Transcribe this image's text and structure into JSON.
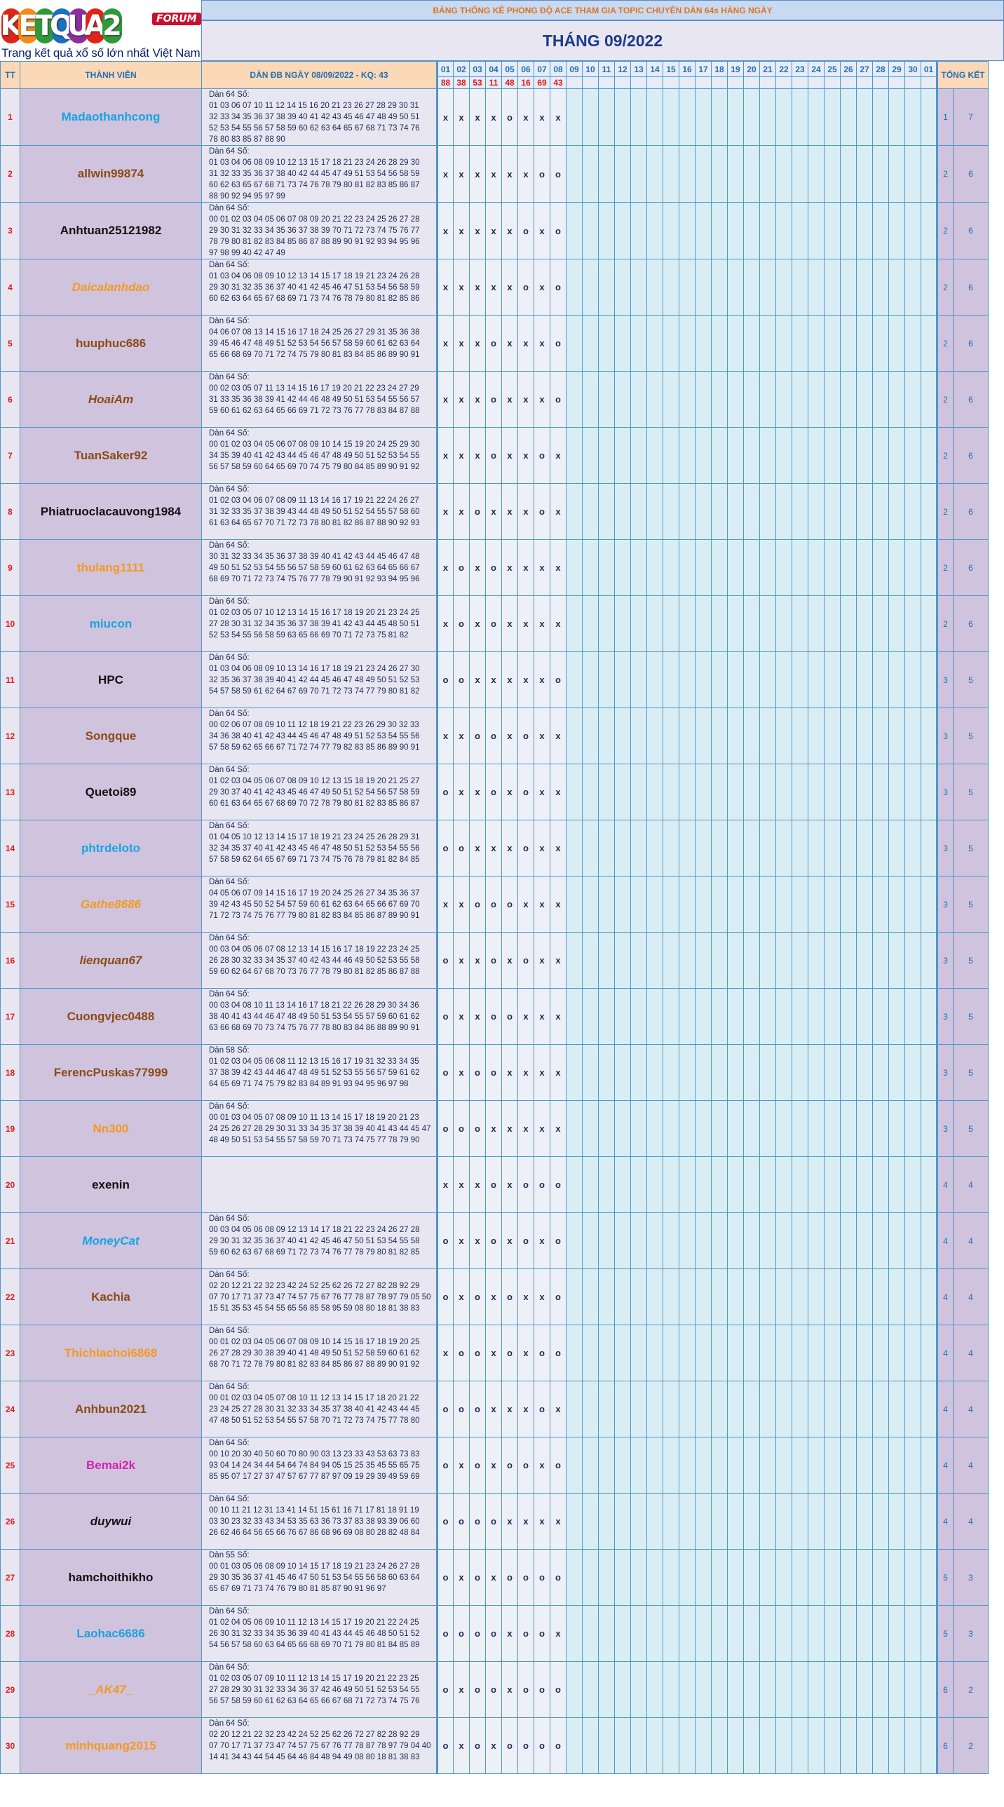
{
  "logo": {
    "letters": [
      "K",
      "E",
      "T",
      "Q",
      "U",
      "A",
      "2"
    ],
    "letter_colors": [
      "#e2231a",
      "#f28c1a",
      "#2e9a3a",
      "#1d6fc1",
      "#8a2ea0",
      "#e2231a",
      "#2e9a3a"
    ],
    "forum_label": "FORUM",
    "tagline": "Trang kết quả xổ số lớn nhất Việt Nam"
  },
  "header": {
    "banner": "BẢNG THỐNG KÊ PHONG ĐỘ ACE THAM GIA TOPIC CHUYÊN DÀN 64s HÀNG NGÀY",
    "month_title": "THÁNG 09/2022"
  },
  "columns": {
    "stt": "TT",
    "member": "THÀNH VIÊN",
    "dan": "DÀN ĐB NGÀY 08/09/2022 - KQ: 43",
    "total": "TỔNG KẾT"
  },
  "days": [
    "01",
    "02",
    "03",
    "04",
    "05",
    "06",
    "07",
    "08",
    "09",
    "10",
    "11",
    "12",
    "13",
    "14",
    "15",
    "16",
    "17",
    "18",
    "19",
    "20",
    "21",
    "22",
    "23",
    "24",
    "25",
    "26",
    "27",
    "28",
    "29",
    "30",
    "01"
  ],
  "results": [
    "88",
    "38",
    "53",
    "11",
    "48",
    "16",
    "69",
    "43"
  ],
  "rows": [
    {
      "stt": "1",
      "name": "Madaothanhcong",
      "color": "#1aa3e0",
      "italic": false,
      "lines": [
        "Dàn 64 Số:",
        "01 03 06 07 10 11 12 14 15 16 20 21 23 26 27 28 29 30 31",
        "32 33 34 35 36 37 38 39 40 41 42 43 45 46 47 48 49 50 51",
        "52 53 54 55 56 57 58 59 60 62 63 64 65 67 68 71 73 74 76",
        "78 80 83 85 87 88 90"
      ],
      "marks": [
        "x",
        "x",
        "x",
        "x",
        "o",
        "x",
        "x",
        "x"
      ],
      "count": "1",
      "total": "7"
    },
    {
      "stt": "2",
      "name": "allwin99874",
      "color": "#8b4a14",
      "italic": false,
      "lines": [
        "Dàn 64 Số:",
        "01 03 04 06 08 09 10 12 13 15 17 18 21 23 24 26 28 29 30",
        "31 32 33 35 36 37 38 40 42 44 45 47 49 51 53 54 56 58 59",
        "60 62 63 65 67 68 71 73 74 76 78 79 80 81 82 83 85 86 87",
        "88 90 92 94 95 97 99"
      ],
      "marks": [
        "x",
        "x",
        "x",
        "x",
        "x",
        "x",
        "o",
        "o"
      ],
      "count": "2",
      "total": "6"
    },
    {
      "stt": "3",
      "name": "Anhtuan25121982",
      "color": "#111111",
      "italic": false,
      "lines": [
        "Dàn 64 Số:",
        "00 01 02 03 04 05 06 07 08 09 20 21 22 23 24 25 26 27 28",
        "29 30 31 32 33 34 35 36 37 38 39 70 71 72 73 74 75 76 77",
        "78 79 80 81 82 83 84 85 86 87 88 89 90 91 92 93 94 95 96",
        "97 98 99 40 42 47 49"
      ],
      "marks": [
        "x",
        "x",
        "x",
        "x",
        "x",
        "o",
        "x",
        "o"
      ],
      "count": "2",
      "total": "6"
    },
    {
      "stt": "4",
      "name": "Daicalanhdao",
      "color": "#f29a1f",
      "italic": true,
      "lines": [
        "Dàn 64 Số:",
        "01 03 04 06 08 09 10 12 13 14 15 17 18 19 21 23 24 26 28",
        "29 30 31 32 35 36 37 40 41 42 45 46 47 51 53 54 56 58 59",
        "60 62 63 64 65 67 68 69 71 73 74 76 78 79 80 81 82 85 86"
      ],
      "marks": [
        "x",
        "x",
        "x",
        "x",
        "x",
        "o",
        "x",
        "o"
      ],
      "count": "2",
      "total": "6"
    },
    {
      "stt": "5",
      "name": "huuphuc686",
      "color": "#8b4a14",
      "italic": false,
      "lines": [
        "Dàn 64 Số:",
        "04 06 07 08 13 14 15 16 17 18 24 25 26 27 29 31 35 36 38",
        "39 45 46 47 48 49 51 52 53 54 56 57 58 59 60 61 62 63 64",
        "65 66 68 69 70 71 72 74 75 79 80 81 83 84 85 86 89 90 91"
      ],
      "marks": [
        "x",
        "x",
        "x",
        "o",
        "x",
        "x",
        "x",
        "o"
      ],
      "count": "2",
      "total": "6"
    },
    {
      "stt": "6",
      "name": "HoaiAm",
      "color": "#8b4a14",
      "italic": true,
      "lines": [
        "Dàn 64 Số:",
        "00 02 03 05 07 11 13 14 15 16 17 19 20 21 22 23 24 27 29",
        "31 33 35 36 38 39 41 42 44 46 48 49 50 51 53 54 55 56 57",
        "59 60 61 62 63 64 65 66 69 71 72 73 76 77 78 83 84 87 88"
      ],
      "marks": [
        "x",
        "x",
        "x",
        "o",
        "x",
        "x",
        "x",
        "o"
      ],
      "count": "2",
      "total": "6"
    },
    {
      "stt": "7",
      "name": "TuanSaker92",
      "color": "#8b4a14",
      "italic": false,
      "lines": [
        "Dàn 64 Số:",
        "00 01 02 03 04 05 06 07 08 09 10 14 15 19 20 24 25 29 30",
        "34 35 39 40 41 42 43 44 45 46 47 48 49 50 51 52 53 54 55",
        "56 57 58 59 60 64 65 69 70 74 75 79 80 84 85 89 90 91 92"
      ],
      "marks": [
        "x",
        "x",
        "x",
        "o",
        "x",
        "x",
        "o",
        "x"
      ],
      "count": "2",
      "total": "6"
    },
    {
      "stt": "8",
      "name": "Phiatruoclacauvong1984",
      "color": "#111111",
      "italic": false,
      "lines": [
        "Dàn 64 Số:",
        "01 02 03 04 06 07 08 09 11 13 14 16 17 19 21 22 24 26 27",
        "31 32 33 35 37 38 39 43 44 48 49 50 51 52 54 55 57 58 60",
        "61 63 64 65 67 70 71 72 73 78 80 81 82 86 87 88 90 92 93"
      ],
      "marks": [
        "x",
        "x",
        "o",
        "x",
        "x",
        "x",
        "o",
        "x"
      ],
      "count": "2",
      "total": "6"
    },
    {
      "stt": "9",
      "name": "thulang1111",
      "color": "#f29a1f",
      "italic": false,
      "lines": [
        "Dàn 64 Số:",
        "30 31 32 33 34 35 36 37 38 39 40 41 42 43 44 45 46 47 48",
        "49 50 51 52 53 54 55 56 57 58 59 60 61 62 63 64 65 66 67",
        "68 69 70 71 72 73 74 75 76 77 78 79 90 91 92 93 94 95 96"
      ],
      "marks": [
        "x",
        "o",
        "x",
        "o",
        "x",
        "x",
        "x",
        "x"
      ],
      "count": "2",
      "total": "6"
    },
    {
      "stt": "10",
      "name": "miucon",
      "color": "#1aa3e0",
      "italic": false,
      "lines": [
        "Dàn 64 Số:",
        "01 02 03 05 07 10 12 13 14 15 16 17 18 19 20 21 23 24 25",
        "27 28 30 31 32 34 35 36 37 38 39 41 42 43 44 45 48 50 51",
        "52 53 54 55 56 58 59 63 65 66 69 70 71 72 73 75 81 82"
      ],
      "marks": [
        "x",
        "o",
        "x",
        "o",
        "x",
        "x",
        "x",
        "x"
      ],
      "count": "2",
      "total": "6"
    },
    {
      "stt": "11",
      "name": "HPC",
      "color": "#111111",
      "italic": false,
      "lines": [
        "Dàn 64 Số:",
        "01 03 04 06 08 09 10 13 14 16 17 18 19 21 23 24 26 27 30",
        "32 35 36 37 38 39 40 41 42 44 45 46 47 48 49 50 51 52 53",
        "54 57 58 59 61 62 64 67 69 70 71 72 73 74 77 79 80 81 82"
      ],
      "marks": [
        "o",
        "o",
        "x",
        "x",
        "x",
        "x",
        "x",
        "o"
      ],
      "count": "3",
      "total": "5"
    },
    {
      "stt": "12",
      "name": "Songque",
      "color": "#8b4a14",
      "italic": false,
      "lines": [
        "Dàn 64 Số:",
        "00 02 06 07 08 09 10 11 12 18 19 21 22 23 26 29 30 32 33",
        "34 36 38 40 41 42 43 44 45 46 47 48 49 51 52 53 54 55 56",
        "57 58 59 62 65 66 67 71 72 74 77 79 82 83 85 86 89 90 91"
      ],
      "marks": [
        "x",
        "x",
        "o",
        "o",
        "x",
        "o",
        "x",
        "x"
      ],
      "count": "3",
      "total": "5"
    },
    {
      "stt": "13",
      "name": "Quetoi89",
      "color": "#111111",
      "italic": false,
      "lines": [
        "Dàn 64 Số:",
        "01 02 03 04 05 06 07 08 09 10 12 13 15 18 19 20 21 25 27",
        "29 30 37 40 41 42 43 45 46 47 49 50 51 52 54 56 57 58 59",
        "60 61 63 64 65 67 68 69 70 72 78 79 80 81 82 83 85 86 87"
      ],
      "marks": [
        "o",
        "x",
        "x",
        "o",
        "x",
        "o",
        "x",
        "x"
      ],
      "count": "3",
      "total": "5"
    },
    {
      "stt": "14",
      "name": "phtrdeloto",
      "color": "#1aa3e0",
      "italic": false,
      "lines": [
        "Dàn 64 Số:",
        "01 04 05 10 12 13 14 15 17 18 19 21 23 24 25 26 28 29 31",
        "32 34 35 37 40 41 42 43 45 46 47 48 50 51 52 53 54 55 56",
        "57 58 59 62 64 65 67 69 71 73 74 75 76 78 79 81 82 84 85"
      ],
      "marks": [
        "o",
        "o",
        "x",
        "x",
        "x",
        "o",
        "x",
        "x"
      ],
      "count": "3",
      "total": "5"
    },
    {
      "stt": "15",
      "name": "Gathe8686",
      "color": "#f29a1f",
      "italic": true,
      "lines": [
        "Dàn 64 Số:",
        "04 05 06 07 09 14 15 16 17 19 20 24 25 26 27 34 35 36 37",
        "39 42 43 45 50 52 54 57 59 60 61 62 63 64 65 66 67 69 70",
        "71 72 73 74 75 76 77 79 80 81 82 83 84 85 86 87 89 90 91"
      ],
      "marks": [
        "x",
        "x",
        "o",
        "o",
        "o",
        "x",
        "x",
        "x"
      ],
      "count": "3",
      "total": "5"
    },
    {
      "stt": "16",
      "name": "lienquan67",
      "color": "#8b4a14",
      "italic": true,
      "lines": [
        "Dàn 64 Số:",
        "00 03 04 05 06 07 08 12 13 14 15 16 17 18 19 22 23 24 25",
        "26 28 30 32 33 34 35 37 40 42 43 44 46 49 50 52 53 55 58",
        "59 60 62 64 67 68 70 73 76 77 78 79 80 81 82 85 86 87 88"
      ],
      "marks": [
        "o",
        "x",
        "x",
        "o",
        "x",
        "o",
        "x",
        "x"
      ],
      "count": "3",
      "total": "5"
    },
    {
      "stt": "17",
      "name": "Cuongvjec0488",
      "color": "#8b4a14",
      "italic": false,
      "lines": [
        "Dàn 64 Số:",
        "00 03 04 08 10 11 13 14 16 17 18 21 22 26 28 29 30 34 36",
        "38 40 41 43 44 46 47 48 49 50 51 53 54 55 57 59 60 61 62",
        "63 66 68 69 70 73 74 75 76 77 78 80 83 84 86 88 89 90 91"
      ],
      "marks": [
        "o",
        "x",
        "x",
        "o",
        "o",
        "x",
        "x",
        "x"
      ],
      "count": "3",
      "total": "5"
    },
    {
      "stt": "18",
      "name": "FerencPuskas77999",
      "color": "#8b4a14",
      "italic": false,
      "lines": [
        "Dàn 58 Số:",
        "01 02 03 04 05 06 08 11 12 13 15 16 17 19 31 32 33 34 35",
        "37 38 39 42 43 44 46 47 48 49 51 52 53 55 56 57 59 61 62",
        "64 65 69 71 74 75 79 82 83 84 89 91 93 94 95 96 97 98"
      ],
      "marks": [
        "o",
        "x",
        "o",
        "o",
        "x",
        "x",
        "x",
        "x"
      ],
      "count": "3",
      "total": "5"
    },
    {
      "stt": "19",
      "name": "Nn300",
      "color": "#f29a1f",
      "italic": false,
      "lines": [
        "Dàn 64 Số:",
        "00 01 03 04 05 07 08 09 10 11 13 14 15 17 18 19 20 21 23",
        "24 25 26 27 28 29 30 31 33 34 35 37 38 39 40 41 43 44 45 47",
        "48 49 50 51 53 54 55 57 58 59 70 71 73 74 75 77 78 79 90"
      ],
      "marks": [
        "o",
        "o",
        "o",
        "x",
        "x",
        "x",
        "x",
        "x"
      ],
      "count": "3",
      "total": "5"
    },
    {
      "stt": "20",
      "name": "exenin",
      "color": "#111111",
      "italic": false,
      "lines": [],
      "marks": [
        "x",
        "x",
        "x",
        "o",
        "x",
        "o",
        "o",
        "o"
      ],
      "count": "4",
      "total": "4"
    },
    {
      "stt": "21",
      "name": "MoneyCat",
      "color": "#1aa3e0",
      "italic": true,
      "lines": [
        "Dàn 64 Số:",
        "00 03 04 05 06 08 09 12 13 14 17 18 21 22 23 24 26 27 28",
        "29 30 31 32 35 36 37 40 41 42 45 46 47 50 51 53 54 55 58",
        "59 60 62 63 67 68 69 71 72 73 74 76 77 78 79 80 81 82 85"
      ],
      "marks": [
        "o",
        "x",
        "x",
        "o",
        "x",
        "o",
        "x",
        "o"
      ],
      "count": "4",
      "total": "4"
    },
    {
      "stt": "22",
      "name": "Kachia",
      "color": "#8b4a14",
      "italic": false,
      "lines": [
        "Dàn 64 Số:",
        "02 20 12 21 22 32 23 42 24 52 25 62 26 72 27 82 28 92 29",
        "07 70 17 71 37 73 47 74 57 75 67 76 77 78 87 78 97 79 05 50",
        "15 51 35 53 45 54 55 65 56 85 58 95 59 08 80 18 81 38 83"
      ],
      "marks": [
        "o",
        "x",
        "o",
        "x",
        "o",
        "x",
        "x",
        "o"
      ],
      "count": "4",
      "total": "4"
    },
    {
      "stt": "23",
      "name": "Thichlachoi6868",
      "color": "#f29a1f",
      "italic": false,
      "lines": [
        "Dàn 64 Số:",
        "00 01 02 03 04 05 06 07 08 09 10 14 15 16 17 18 19 20 25",
        "26 27 28 29 30 38 39 40 41 48 49 50 51 52 58 59 60 61 62",
        "68 70 71 72 78 79 80 81 82 83 84 85 86 87 88 89 90 91 92"
      ],
      "marks": [
        "x",
        "o",
        "o",
        "x",
        "o",
        "x",
        "o",
        "o"
      ],
      "count": "4",
      "total": "4"
    },
    {
      "stt": "24",
      "name": "Anhbun2021",
      "color": "#8b4a14",
      "italic": false,
      "lines": [
        "Dàn 64 Số:",
        "00 01 02 03 04 05 07 08 10 11 12 13 14 15 17 18 20 21 22",
        "23 24 25 27 28 30 31 32 33 34 35 37 38 40 41 42 43 44 45",
        "47 48 50 51 52 53 54 55 57 58 70 71 72 73 74 75 77 78 80"
      ],
      "marks": [
        "o",
        "o",
        "o",
        "x",
        "x",
        "x",
        "o",
        "x"
      ],
      "count": "4",
      "total": "4"
    },
    {
      "stt": "25",
      "name": "Bemai2k",
      "color": "#d61fb0",
      "italic": false,
      "lines": [
        "Dàn 64 Số:",
        "00 10 20 30 40 50 60 70 80 90 03 13 23 33 43 53 63 73 83",
        "93 04 14 24 34 44 54 64 74 84 94 05 15 25 35 45 55 65 75",
        "85 95 07 17 27 37 47 57 67 77 87 97 09 19 29 39 49 59 69"
      ],
      "marks": [
        "o",
        "x",
        "o",
        "x",
        "o",
        "o",
        "x",
        "o"
      ],
      "count": "4",
      "total": "4"
    },
    {
      "stt": "26",
      "name": "duywui",
      "color": "#111111",
      "italic": true,
      "lines": [
        "Dàn 64 Số:",
        "00 10 11 21 12 31 13 41 14 51 15 61 16 71 17 81 18 91 19",
        "03 30 23 32 33 43 34 53 35 63 36 73 37 83 38 93 39 06 60",
        "26 62 46 64 56 65 66 76 67 86 68 96 69 08 80 28 82 48 84"
      ],
      "marks": [
        "o",
        "o",
        "o",
        "o",
        "x",
        "x",
        "x",
        "x"
      ],
      "count": "4",
      "total": "4"
    },
    {
      "stt": "27",
      "name": "hamchoithikho",
      "color": "#111111",
      "italic": false,
      "lines": [
        "Dàn 55 Số:",
        "00 01 03 05 06 08 09 10 14 15 17 18 19 21 23 24 26 27 28",
        "29 30 35 36 37 41 45 46 47 50 51 53 54 55 56 58 60 63 64",
        "65 67 69 71 73 74 76 79 80 81 85 87 90 91 96 97"
      ],
      "marks": [
        "o",
        "x",
        "o",
        "x",
        "o",
        "o",
        "o",
        "o"
      ],
      "count": "5",
      "total": "3"
    },
    {
      "stt": "28",
      "name": "Laohac6686",
      "color": "#1aa3e0",
      "italic": false,
      "lines": [
        "Dàn 64 Số:",
        "01 02 04 05 06 09 10 11 12 13 14 15 17 19 20 21 22 24 25",
        "26 30 31 32 33 34 35 36 39 40 41 43 44 45 46 48 50 51 52",
        "54 56 57 58 60 63 64 65 66 68 69 70 71 79 80 81 84 85 89"
      ],
      "marks": [
        "o",
        "o",
        "o",
        "o",
        "x",
        "o",
        "o",
        "x"
      ],
      "count": "5",
      "total": "3"
    },
    {
      "stt": "29",
      "name": "_AK47_",
      "color": "#f29a1f",
      "italic": true,
      "lines": [
        "Dàn 64 Số:",
        "01 02 03 05 07 09 10 11 12 13 14 15 17 19 20 21 22 23 25",
        "27 28 29 30 31 32 33 34 36 37 42 46 49 50 51 52 53 54 55",
        "56 57 58 59 60 61 62 63 64 65 66 67 68 71 72 73 74 75 76"
      ],
      "marks": [
        "o",
        "x",
        "o",
        "o",
        "x",
        "o",
        "o",
        "o"
      ],
      "count": "6",
      "total": "2"
    },
    {
      "stt": "30",
      "name": "minhquang2015",
      "color": "#f29a1f",
      "italic": false,
      "lines": [
        "Dàn 64 Số:",
        "02 20 12 21 22 32 23 42 24 52 25 62 26 72 27 82 28 92 29",
        "07 70 17 71 37 73 47 74 57 75 67 76 77 78 87 78 97 79 04 40",
        "14 41 34 43 44 54 45 64 46 84 48 94 49 08 80 18 81 38 83"
      ],
      "marks": [
        "o",
        "x",
        "o",
        "x",
        "o",
        "o",
        "o",
        "o"
      ],
      "count": "6",
      "total": "2"
    }
  ]
}
